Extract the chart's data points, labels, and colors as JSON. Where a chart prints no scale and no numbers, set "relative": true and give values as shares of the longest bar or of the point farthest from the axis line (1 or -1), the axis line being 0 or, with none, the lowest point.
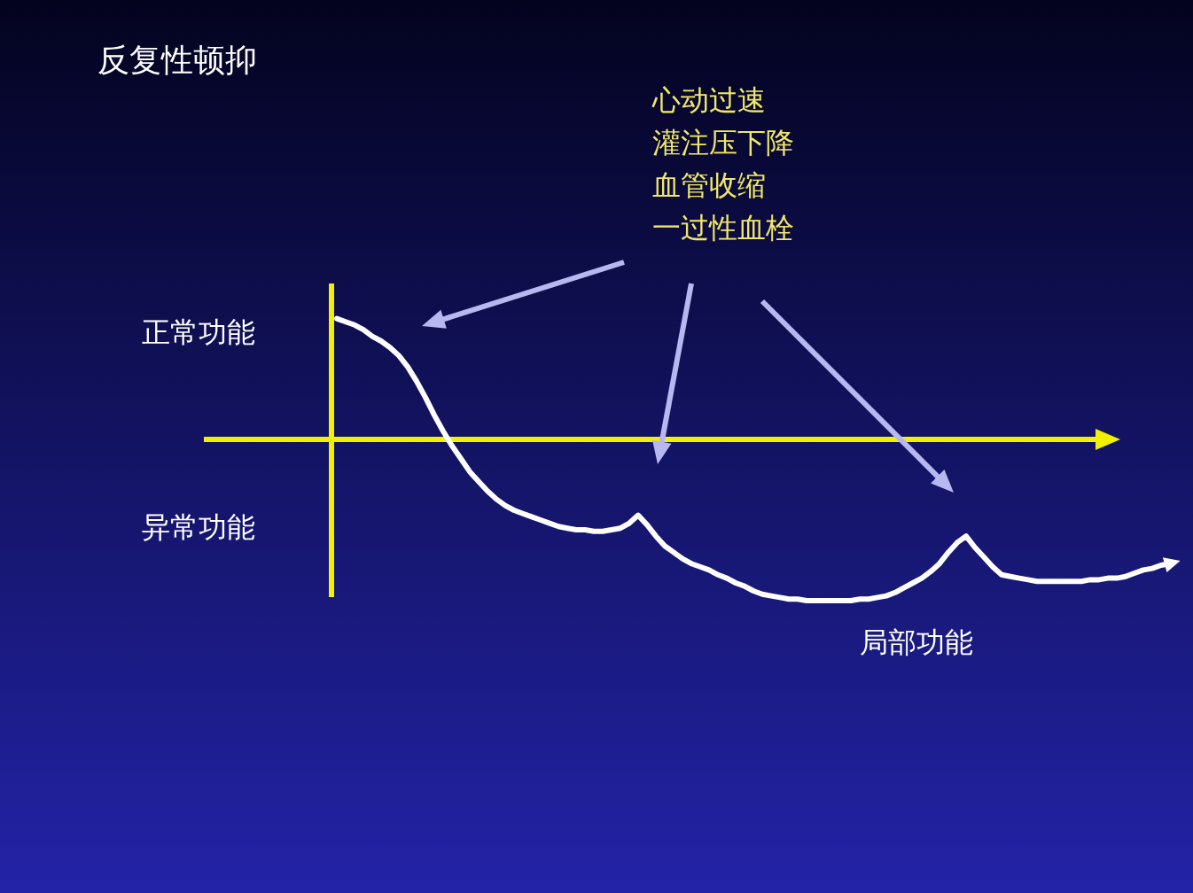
{
  "chart_data": {
    "type": "line",
    "title": "反复性顿抑",
    "relative": true,
    "color": "#ffffff",
    "line_style": "solid",
    "marker": "none",
    "annotations": [
      "心动过速",
      "灌注压下降",
      "血管收缩",
      "一过性血栓",
      "正常功能",
      "异常功能",
      "局部功能"
    ],
    "ref_lines": [
      {
        "axis": "y",
        "value": 0,
        "color": "#f0f000"
      }
    ],
    "categories": [
      null,
      null,
      null,
      null,
      null,
      null,
      null,
      null,
      null,
      null,
      null,
      null,
      null,
      null,
      null,
      null,
      null,
      null,
      null,
      null,
      null,
      null,
      null,
      null,
      null,
      null,
      null,
      null,
      null,
      null,
      null,
      null,
      null,
      null,
      null,
      null,
      null,
      null,
      null,
      null,
      null,
      null,
      null,
      null,
      null,
      null,
      null,
      null,
      null,
      null,
      null,
      null,
      null,
      null,
      null,
      null,
      null,
      null,
      null,
      null,
      null,
      null,
      null,
      null,
      null,
      null,
      null,
      null,
      null,
      null,
      null,
      null,
      null,
      null,
      null,
      null,
      null,
      null,
      null,
      null,
      null,
      null,
      null,
      null,
      null,
      null,
      null,
      null,
      null,
      null,
      null,
      null,
      null,
      null,
      null
    ],
    "values": [
      0.75,
      0.73,
      0.71,
      0.68,
      0.64,
      0.61,
      0.57,
      0.52,
      0.45,
      0.36,
      0.26,
      0.15,
      0.05,
      -0.04,
      -0.12,
      -0.2,
      -0.26,
      -0.32,
      -0.37,
      -0.41,
      -0.44,
      -0.46,
      -0.48,
      -0.5,
      -0.52,
      -0.54,
      -0.55,
      -0.56,
      -0.56,
      -0.57,
      -0.57,
      -0.56,
      -0.55,
      -0.52,
      -0.47,
      -0.53,
      -0.6,
      -0.66,
      -0.7,
      -0.74,
      -0.77,
      -0.79,
      -0.81,
      -0.84,
      -0.86,
      -0.89,
      -0.91,
      -0.94,
      -0.96,
      -0.97,
      -0.98,
      -0.99,
      -0.99,
      -1,
      -1,
      -1,
      -1,
      -1,
      -1,
      -0.99,
      -0.99,
      -0.98,
      -0.97,
      -0.95,
      -0.92,
      -0.89,
      -0.86,
      -0.82,
      -0.77,
      -0.7,
      -0.64,
      -0.6,
      -0.67,
      -0.73,
      -0.79,
      -0.84,
      -0.85,
      -0.86,
      -0.87,
      -0.88,
      -0.88,
      -0.88,
      -0.88,
      -0.88,
      -0.88,
      -0.87,
      -0.87,
      -0.86,
      -0.86,
      -0.85,
      -0.83,
      -0.81,
      -0.8,
      -0.78,
      -0.77
    ]
  }
}
